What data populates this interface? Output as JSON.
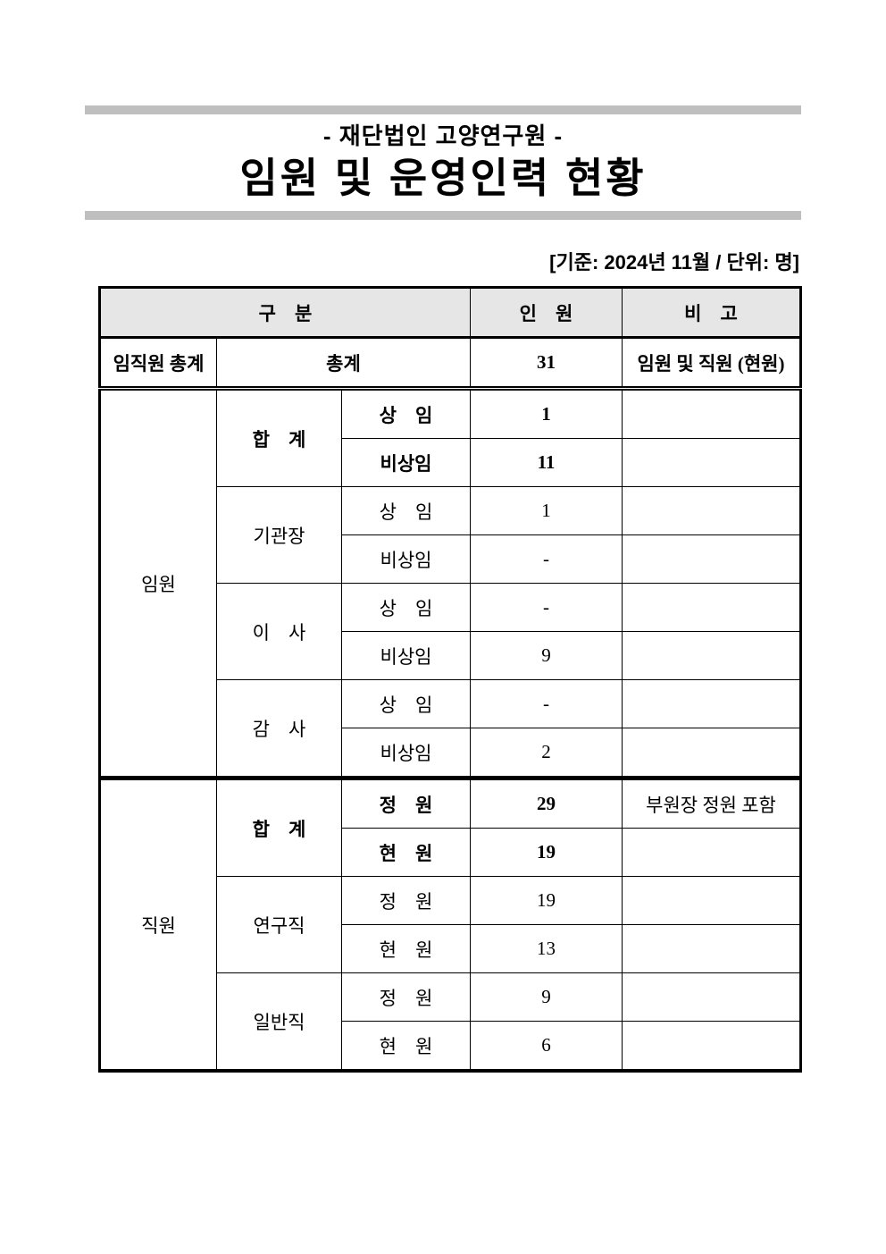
{
  "page": {
    "subtitle": "- 재단법인 고양연구원 -",
    "title": "임원 및 운영인력 현황",
    "basis_note": "[기준: 2024년 11월 / 단위: 명]"
  },
  "colors": {
    "rule_bar": "#bfbfbf",
    "table_header_bg": "#e6e6e6",
    "border": "#000000"
  },
  "table": {
    "header": {
      "group": "구 분",
      "count": "인 원",
      "note": "비 고"
    },
    "total_row": {
      "label": "임직원 총계",
      "sub_label": "총계",
      "value": "31",
      "note": "임원 및 직원 (현원)"
    },
    "officers": {
      "section_label": "임원",
      "groups": [
        {
          "name": "합 계",
          "rows": [
            {
              "type": "상 임",
              "value": "1",
              "note": ""
            },
            {
              "type": "비상임",
              "value": "11",
              "note": ""
            }
          ]
        },
        {
          "name": "기관장",
          "rows": [
            {
              "type": "상 임",
              "value": "1",
              "note": ""
            },
            {
              "type": "비상임",
              "value": "-",
              "note": ""
            }
          ]
        },
        {
          "name": "이 사",
          "rows": [
            {
              "type": "상 임",
              "value": "-",
              "note": ""
            },
            {
              "type": "비상임",
              "value": "9",
              "note": ""
            }
          ]
        },
        {
          "name": "감 사",
          "rows": [
            {
              "type": "상 임",
              "value": "-",
              "note": ""
            },
            {
              "type": "비상임",
              "value": "2",
              "note": ""
            }
          ]
        }
      ]
    },
    "staff": {
      "section_label": "직원",
      "groups": [
        {
          "name": "합 계",
          "rows": [
            {
              "type": "정 원",
              "value": "29",
              "note": "부원장 정원 포함"
            },
            {
              "type": "현 원",
              "value": "19",
              "note": ""
            }
          ]
        },
        {
          "name": "연구직",
          "rows": [
            {
              "type": "정 원",
              "value": "19",
              "note": ""
            },
            {
              "type": "현 원",
              "value": "13",
              "note": ""
            }
          ]
        },
        {
          "name": "일반직",
          "rows": [
            {
              "type": "정 원",
              "value": "9",
              "note": ""
            },
            {
              "type": "현 원",
              "value": "6",
              "note": ""
            }
          ]
        }
      ]
    }
  }
}
